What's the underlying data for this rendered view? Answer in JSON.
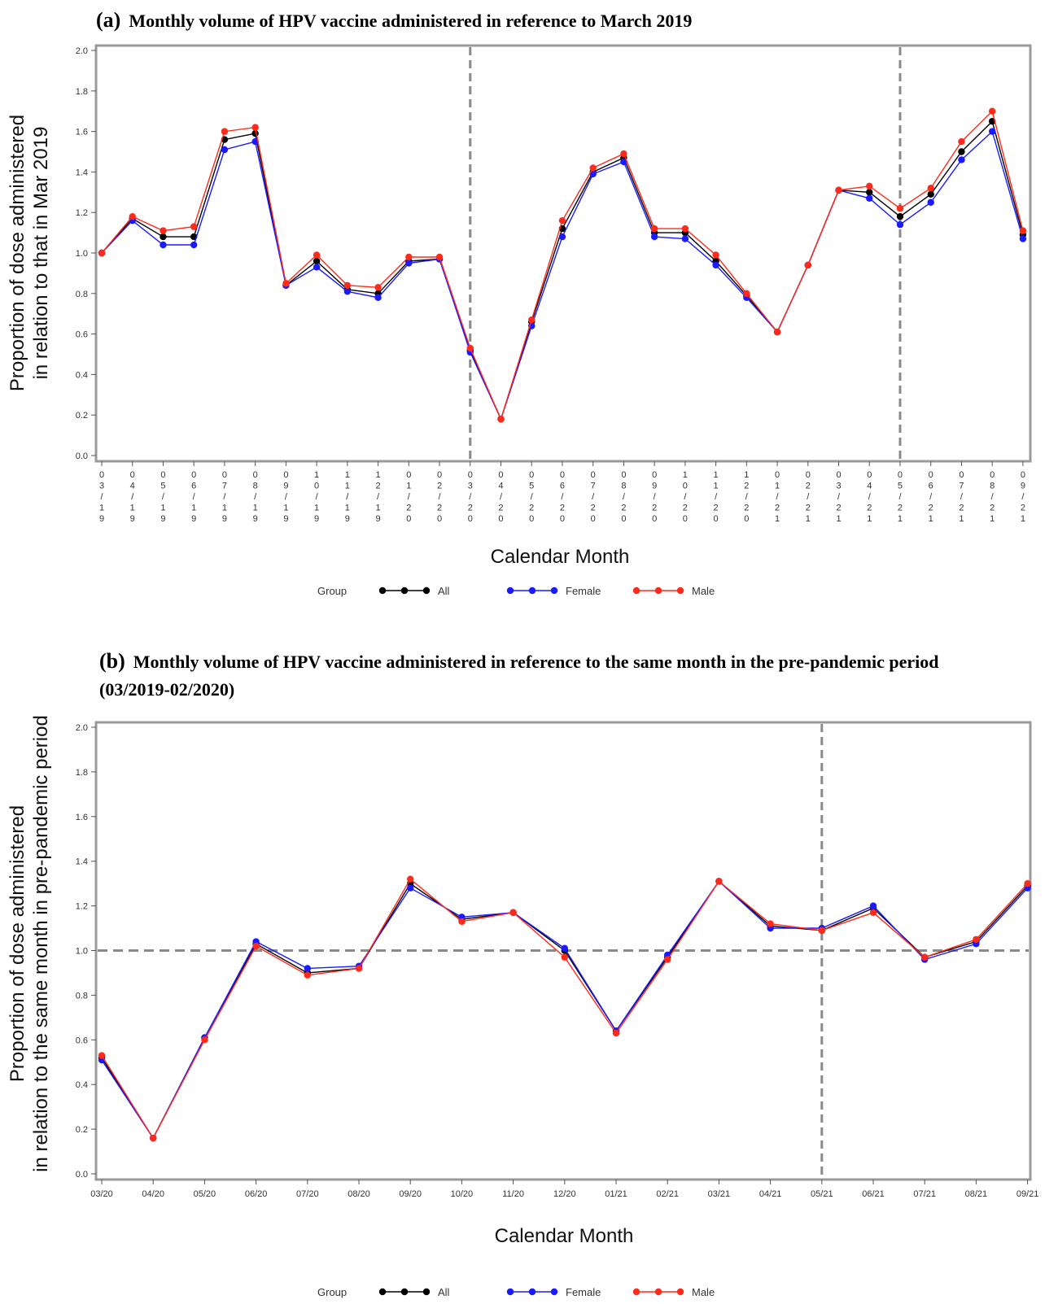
{
  "panel_a_title_label": "(a)",
  "panel_a_title_text": "Monthly volume of HPV vaccine administered in reference to March 2019",
  "panel_b_title_label": "(b)",
  "panel_b_title_text": "Monthly volume of HPV vaccine administered in reference to the same month in the pre-pandemic period (03/2019-02/2020)",
  "legend": {
    "title": "Group",
    "items": [
      "All",
      "Female",
      "Male"
    ]
  },
  "colors": {
    "All": "#000000",
    "Female": "#1a1aff",
    "Male": "#ff2a1a",
    "reference_line": "#8a8a8a",
    "frame": "#9a9a9a"
  },
  "chart_data": [
    {
      "type": "line",
      "title": "Monthly volume of HPV vaccine administered in reference to March 2019",
      "xlabel": "Calendar Month",
      "ylabel": [
        "Proportion of dose administered",
        "in relation to that in Mar 2019"
      ],
      "ylim": [
        0,
        2
      ],
      "yticks": [
        "0.0",
        "0.2",
        "0.4",
        "0.6",
        "0.8",
        "1.0",
        "1.2",
        "1.4",
        "1.6",
        "1.8",
        "2.0"
      ],
      "tick_style": "vertical",
      "grid": false,
      "legend_position": "bottom",
      "reference_lines": [
        {
          "axis": "x",
          "at": "03/20"
        },
        {
          "axis": "x",
          "at": "05/21"
        }
      ],
      "categories": [
        "03/19",
        "04/19",
        "05/19",
        "06/19",
        "07/19",
        "08/19",
        "09/19",
        "10/19",
        "11/19",
        "12/19",
        "01/20",
        "02/20",
        "03/20",
        "04/20",
        "05/20",
        "06/20",
        "07/20",
        "08/20",
        "09/20",
        "10/20",
        "11/20",
        "12/20",
        "01/21",
        "02/21",
        "03/21",
        "04/21",
        "05/21",
        "06/21",
        "07/21",
        "08/21",
        "09/21"
      ],
      "series": [
        {
          "name": "All",
          "values": [
            1.0,
            1.17,
            1.08,
            1.08,
            1.56,
            1.59,
            0.84,
            0.96,
            0.82,
            0.8,
            0.96,
            0.97,
            0.52,
            0.18,
            0.66,
            1.12,
            1.4,
            1.47,
            1.1,
            1.1,
            0.96,
            0.79,
            0.61,
            0.94,
            1.31,
            1.3,
            1.18,
            1.29,
            1.5,
            1.65,
            1.09
          ]
        },
        {
          "name": "Female",
          "values": [
            1.0,
            1.16,
            1.04,
            1.04,
            1.51,
            1.55,
            0.84,
            0.93,
            0.81,
            0.78,
            0.95,
            0.97,
            0.51,
            0.18,
            0.64,
            1.08,
            1.39,
            1.45,
            1.08,
            1.07,
            0.94,
            0.78,
            0.61,
            0.94,
            1.31,
            1.27,
            1.14,
            1.25,
            1.46,
            1.6,
            1.07
          ]
        },
        {
          "name": "Male",
          "values": [
            1.0,
            1.18,
            1.11,
            1.13,
            1.6,
            1.62,
            0.85,
            0.99,
            0.84,
            0.83,
            0.98,
            0.98,
            0.53,
            0.18,
            0.67,
            1.16,
            1.42,
            1.49,
            1.12,
            1.12,
            0.99,
            0.8,
            0.61,
            0.94,
            1.31,
            1.33,
            1.22,
            1.32,
            1.55,
            1.7,
            1.11
          ]
        }
      ]
    },
    {
      "type": "line",
      "title": "Monthly volume of HPV vaccine administered in reference to the same month in the pre-pandemic period (03/2019-02/2020)",
      "xlabel": "Calendar Month",
      "ylabel": [
        "Proportion of dose administered",
        "in relation to the same month in pre-pandemic period"
      ],
      "ylim": [
        0,
        2
      ],
      "yticks": [
        "0.0",
        "0.2",
        "0.4",
        "0.6",
        "0.8",
        "1.0",
        "1.2",
        "1.4",
        "1.6",
        "1.8",
        "2.0"
      ],
      "tick_style": "horizontal",
      "grid": false,
      "legend_position": "bottom",
      "reference_lines": [
        {
          "axis": "x",
          "at": "05/21"
        },
        {
          "axis": "y",
          "at": 1.0
        }
      ],
      "categories": [
        "03/20",
        "04/20",
        "05/20",
        "06/20",
        "07/20",
        "08/20",
        "09/20",
        "10/20",
        "11/20",
        "12/20",
        "01/21",
        "02/21",
        "03/21",
        "04/21",
        "05/21",
        "06/21",
        "07/21",
        "08/21",
        "09/21"
      ],
      "series": [
        {
          "name": "All",
          "values": [
            0.52,
            0.16,
            0.61,
            1.03,
            0.9,
            0.92,
            1.3,
            1.14,
            1.17,
            1.0,
            0.64,
            0.97,
            1.31,
            1.11,
            1.09,
            1.19,
            0.97,
            1.04,
            1.29
          ]
        },
        {
          "name": "Female",
          "values": [
            0.51,
            0.16,
            0.61,
            1.04,
            0.92,
            0.93,
            1.28,
            1.15,
            1.17,
            1.01,
            0.64,
            0.98,
            1.31,
            1.1,
            1.1,
            1.2,
            0.96,
            1.03,
            1.28
          ]
        },
        {
          "name": "Male",
          "values": [
            0.53,
            0.16,
            0.6,
            1.02,
            0.89,
            0.92,
            1.32,
            1.13,
            1.17,
            0.97,
            0.63,
            0.96,
            1.31,
            1.12,
            1.09,
            1.17,
            0.97,
            1.05,
            1.3
          ]
        }
      ]
    }
  ]
}
